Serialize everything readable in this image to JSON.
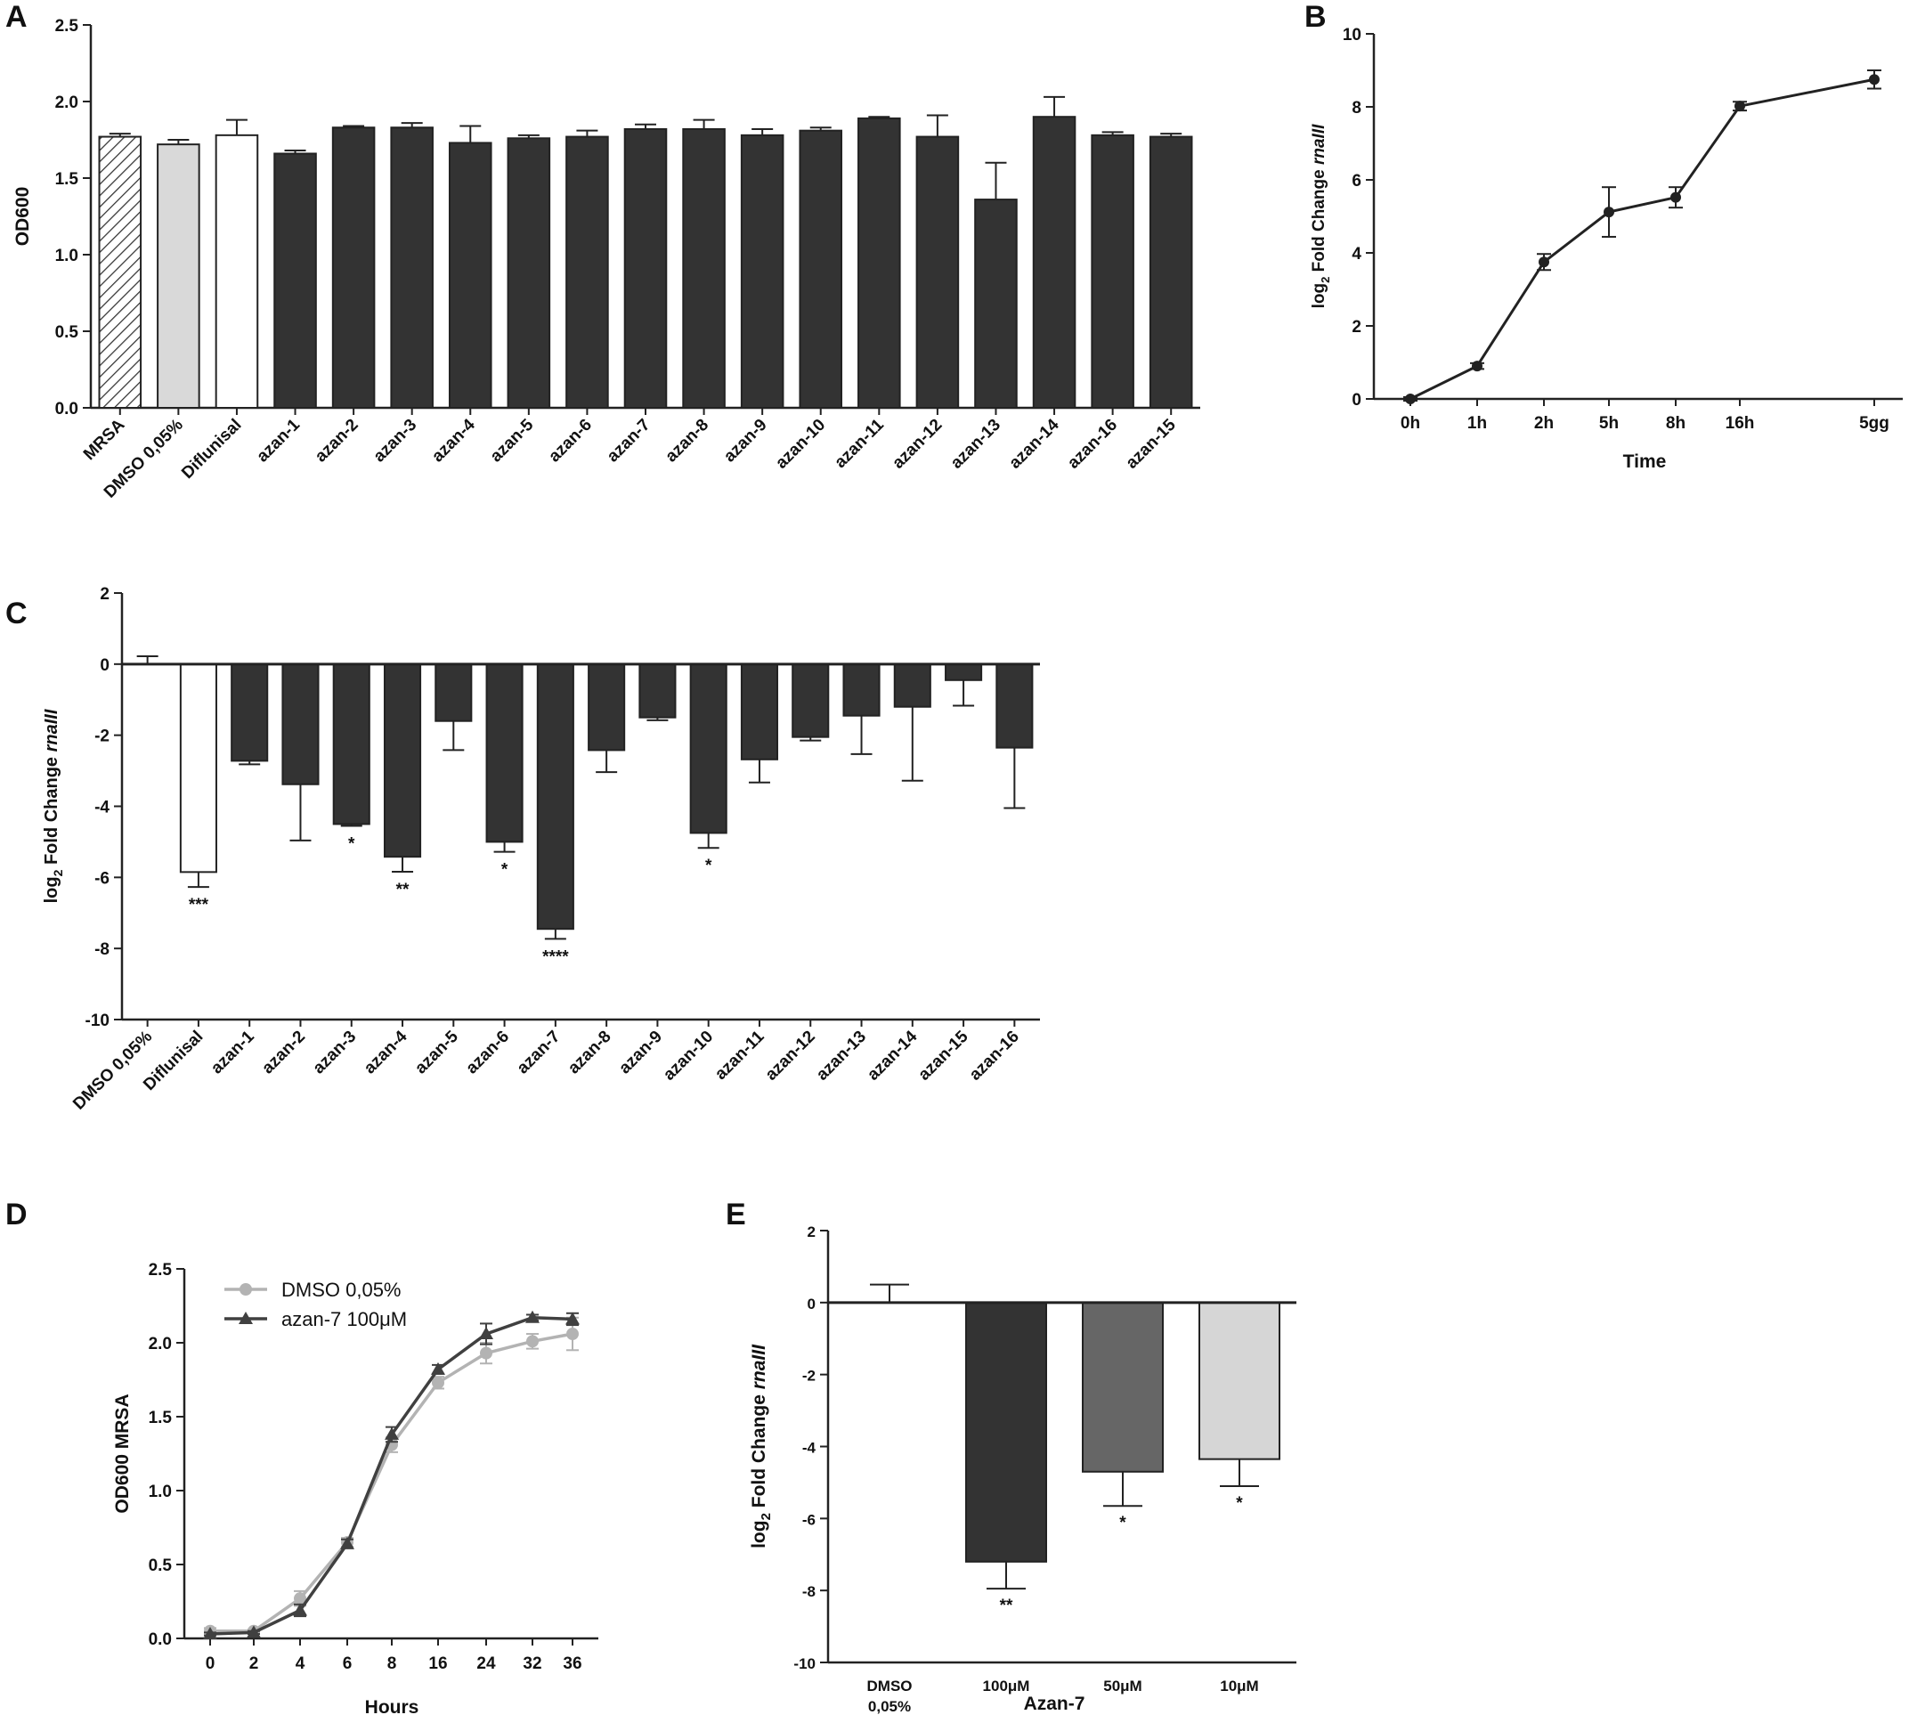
{
  "chart_data": [
    {
      "panel": "A",
      "type": "bar",
      "ylabel": "OD600",
      "xlabel": "",
      "ylim": [
        0,
        2.5
      ],
      "yticks": [
        "0.0",
        "0.5",
        "1.0",
        "1.5",
        "2.0",
        "2.5"
      ],
      "categories": [
        "MRSA",
        "DMSO 0,05%",
        "Diflunisal",
        "azan-1",
        "azan-2",
        "azan-3",
        "azan-4",
        "azan-5",
        "azan-6",
        "azan-7",
        "azan-8",
        "azan-9",
        "azan-10",
        "azan-11",
        "azan-12",
        "azan-13",
        "azan-14",
        "azan-16",
        "azan-15"
      ],
      "values": [
        1.77,
        1.72,
        1.78,
        1.66,
        1.83,
        1.83,
        1.73,
        1.76,
        1.77,
        1.82,
        1.82,
        1.78,
        1.81,
        1.89,
        1.77,
        1.36,
        1.9,
        1.78,
        1.77
      ],
      "errors": [
        0.02,
        0.03,
        0.1,
        0.02,
        0.01,
        0.03,
        0.11,
        0.02,
        0.04,
        0.03,
        0.06,
        0.04,
        0.02,
        0.01,
        0.14,
        0.24,
        0.13,
        0.02,
        0.02
      ],
      "bar_styles": [
        "hatched",
        "light",
        "white",
        "dark",
        "dark",
        "dark",
        "dark",
        "dark",
        "dark",
        "dark",
        "dark",
        "dark",
        "dark",
        "dark",
        "dark",
        "dark",
        "dark",
        "dark",
        "dark"
      ],
      "colors": {
        "dark": "#333333",
        "light": "#d9d9d9",
        "white": "#ffffff"
      }
    },
    {
      "panel": "B",
      "type": "line",
      "xlabel": "Time",
      "ylabel_main": "log",
      "ylabel_sub": "2",
      "ylabel_rest": " Fold Change ",
      "ylabel_gene": "rnaIII",
      "ylim": [
        0,
        10
      ],
      "yticks": [
        "0",
        "2",
        "4",
        "6",
        "8",
        "10"
      ],
      "x": [
        "0h",
        "1h",
        "2h",
        "5h",
        "8h",
        "16h",
        "5gg"
      ],
      "values": [
        0,
        0.9,
        3.75,
        5.12,
        5.52,
        8.02,
        8.75
      ],
      "errors": [
        0.05,
        0.08,
        0.22,
        0.68,
        0.28,
        0.12,
        0.25
      ]
    },
    {
      "panel": "C",
      "type": "bar",
      "ylabel_main": "log",
      "ylabel_sub": "2",
      "ylabel_rest": " Fold Change ",
      "ylabel_gene": "rnaIII",
      "ylim": [
        -10,
        2
      ],
      "yticks": [
        "-10",
        "-8",
        "-6",
        "-4",
        "-2",
        "0",
        "2"
      ],
      "categories": [
        "DMSO 0,05%",
        "Diflunisal",
        "azan-1",
        "azan-2",
        "azan-3",
        "azan-4",
        "azan-5",
        "azan-6",
        "azan-7",
        "azan-8",
        "azan-9",
        "azan-10",
        "azan-11",
        "azan-12",
        "azan-13",
        "azan-14",
        "azan-15",
        "azan-16"
      ],
      "values": [
        0,
        -5.85,
        -2.72,
        -3.38,
        -4.5,
        -5.42,
        -1.6,
        -5.0,
        -7.45,
        -2.42,
        -1.5,
        -4.75,
        -2.68,
        -2.05,
        -1.45,
        -1.2,
        -0.45,
        -2.35
      ],
      "errors": [
        0.22,
        0.42,
        0.1,
        1.58,
        0.05,
        0.42,
        0.82,
        0.28,
        0.28,
        0.62,
        0.08,
        0.42,
        0.65,
        0.1,
        1.08,
        2.08,
        0.72,
        1.7
      ],
      "significance": [
        "",
        "***",
        "",
        "",
        "*",
        "**",
        "",
        "*",
        "****",
        "",
        "",
        "*",
        "",
        "",
        "",
        "",
        "",
        ""
      ],
      "bar_styles": [
        "white",
        "white",
        "dark",
        "dark",
        "dark",
        "dark",
        "dark",
        "dark",
        "dark",
        "dark",
        "dark",
        "dark",
        "dark",
        "dark",
        "dark",
        "dark",
        "dark",
        "dark"
      ],
      "colors": {
        "dark": "#333333",
        "white": "#ffffff"
      }
    },
    {
      "panel": "D",
      "type": "line",
      "xlabel": "Hours",
      "ylabel": "OD600 MRSA",
      "ylim": [
        0,
        2.5
      ],
      "yticks": [
        "0.0",
        "0.5",
        "1.0",
        "1.5",
        "2.0",
        "2.5"
      ],
      "x": [
        "0",
        "2",
        "4",
        "6",
        "8",
        "16",
        "24",
        "32",
        "36"
      ],
      "series": [
        {
          "name": "DMSO 0,05%",
          "marker": "circle",
          "color": "#b3b3b3",
          "values": [
            0.05,
            0.05,
            0.27,
            0.65,
            1.31,
            1.73,
            1.93,
            2.01,
            2.06
          ],
          "errors": [
            0.02,
            0.01,
            0.05,
            0.03,
            0.05,
            0.04,
            0.07,
            0.05,
            0.11
          ]
        },
        {
          "name": "azan-7 100μM",
          "marker": "triangle",
          "color": "#404040",
          "values": [
            0.03,
            0.04,
            0.19,
            0.64,
            1.38,
            1.82,
            2.06,
            2.17,
            2.16
          ],
          "errors": [
            0.01,
            0.01,
            0.04,
            0.03,
            0.05,
            0.03,
            0.07,
            0.02,
            0.04
          ]
        }
      ],
      "legend": "top-left"
    },
    {
      "panel": "E",
      "type": "bar",
      "xlabel": "Azan-7",
      "ylabel_main": "log",
      "ylabel_sub": "2",
      "ylabel_rest": " Fold Change ",
      "ylabel_gene": "rnaIII",
      "ylim": [
        -10,
        2
      ],
      "yticks": [
        "-10",
        "-8",
        "-6",
        "-4",
        "-2",
        "0",
        "2"
      ],
      "categories": [
        [
          "DMSO",
          "0,05%"
        ],
        [
          "100μM"
        ],
        [
          "50μM"
        ],
        [
          "10μM"
        ]
      ],
      "values": [
        0,
        -7.2,
        -4.7,
        -4.35
      ],
      "errors": [
        0.5,
        0.75,
        0.95,
        0.75
      ],
      "significance": [
        "",
        "**",
        "*",
        "*"
      ],
      "colors": [
        "#ffffff",
        "#333333",
        "#666666",
        "#d6d6d6"
      ]
    }
  ],
  "panel_letters": [
    "A",
    "B",
    "C",
    "D",
    "E"
  ]
}
